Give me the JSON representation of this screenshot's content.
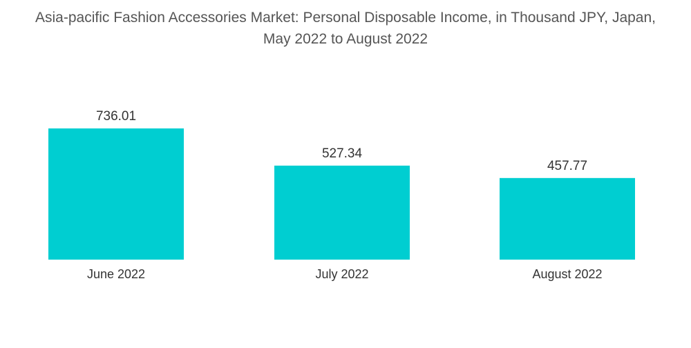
{
  "chart_data": {
    "type": "bar",
    "title": "Asia-pacific Fashion Accessories Market: Personal Disposable Income, in Thousand JPY, Japan, May 2022 to August 2022",
    "categories": [
      "June 2022",
      "July 2022",
      "August 2022"
    ],
    "values": [
      736.01,
      527.34,
      457.77
    ],
    "value_labels": [
      "736.01",
      "527.34",
      "457.77"
    ],
    "xlabel": "",
    "ylabel": "",
    "ylim": [
      0,
      736.01
    ],
    "grid": false,
    "legend": "none",
    "colors": {
      "bar": "#00CED1"
    }
  }
}
